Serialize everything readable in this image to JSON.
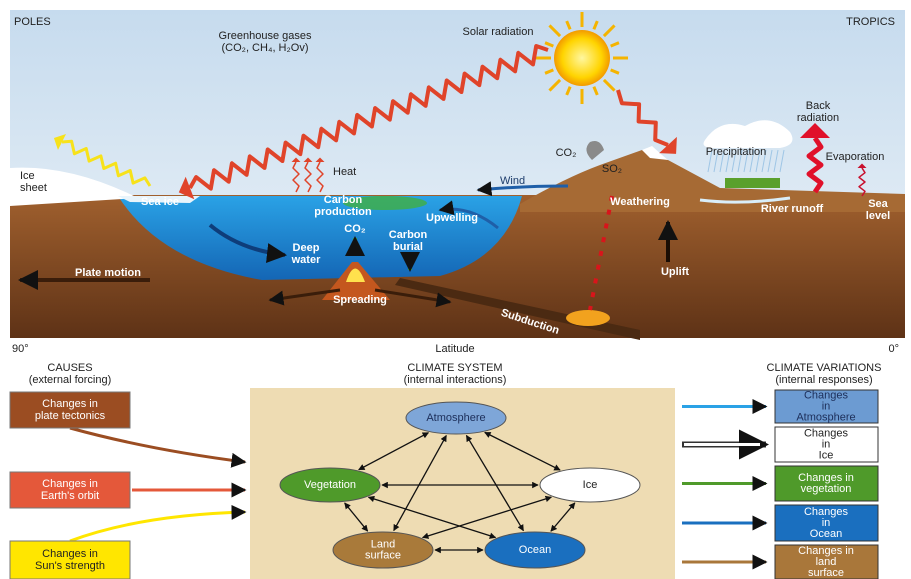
{
  "illustration": {
    "poles": "POLES",
    "tropics": "TROPICS",
    "greenhouse_gases": [
      "Greenhouse gases",
      "(CO₂, CH₄, H₂Ov)"
    ],
    "solar_radiation": "Solar radiation",
    "ice_sheet": [
      "Ice",
      "sheet"
    ],
    "sea_ice": "Sea ice",
    "heat": "Heat",
    "carbon_production": [
      "Carbon",
      "production"
    ],
    "wind": "Wind",
    "co2_volcano": "CO₂",
    "so2": "SO₂",
    "upwelling": "Upwelling",
    "co2_ocean": "CO₂",
    "carbon_burial": [
      "Carbon",
      "burial"
    ],
    "deep_water": [
      "Deep",
      "water"
    ],
    "plate_motion": "Plate motion",
    "spreading": "Spreading",
    "subduction": "Subduction",
    "weathering": "Weathering",
    "uplift": "Uplift",
    "precipitation": "Precipitation",
    "back_radiation": [
      "Back",
      "radiation"
    ],
    "evaporation": "Evaporation",
    "river_runoff": "River runoff",
    "sea_level": [
      "Sea",
      "level"
    ],
    "axis": {
      "left": "90°",
      "label": "Latitude",
      "right": "0°"
    }
  },
  "causes": {
    "title": "CAUSES",
    "subtitle": "(external forcing)",
    "items": [
      [
        "Changes in",
        "plate tectonics"
      ],
      [
        "Changes in",
        "Earth's orbit"
      ],
      [
        "Changes in",
        "Sun's strength"
      ]
    ]
  },
  "climate_system": {
    "title": "CLIMATE SYSTEM",
    "subtitle": "(internal interactions)",
    "nodes": [
      [
        "Atmosphere"
      ],
      [
        "Vegetation"
      ],
      [
        "Ice"
      ],
      [
        "Land",
        "surface"
      ],
      [
        "Ocean"
      ]
    ]
  },
  "climate_variations": {
    "title": "CLIMATE VARIATIONS",
    "subtitle": "(internal responses)",
    "items": [
      [
        "Changes",
        "in",
        "Atmosphere"
      ],
      [
        "Changes",
        "in",
        "Ice"
      ],
      [
        "Changes in",
        "vegetation"
      ],
      [
        "Changes",
        "in",
        "Ocean"
      ],
      [
        "Changes in",
        "land",
        "surface"
      ]
    ]
  }
}
